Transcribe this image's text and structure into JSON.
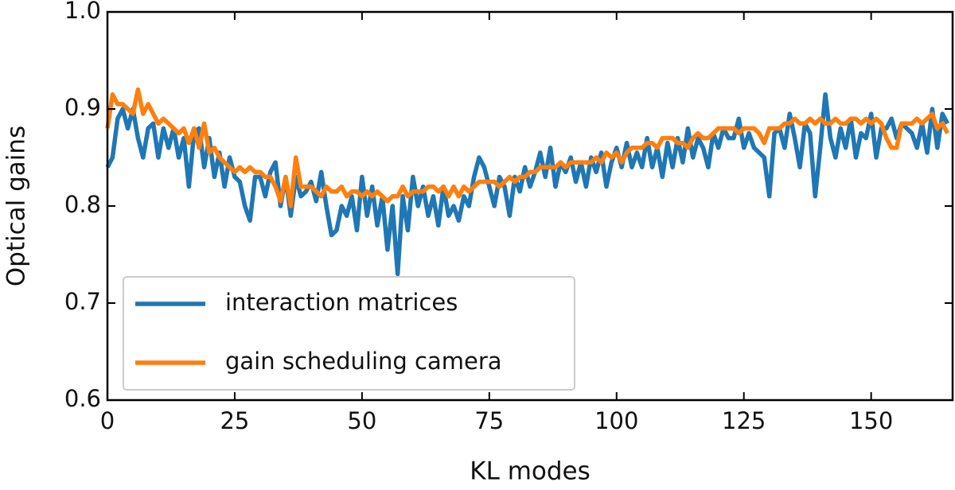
{
  "chart_data": {
    "type": "line",
    "xlabel": "KL modes",
    "ylabel": "Optical gains",
    "x": [
      0,
      1,
      2,
      3,
      4,
      5,
      6,
      7,
      8,
      9,
      10,
      11,
      12,
      13,
      14,
      15,
      16,
      17,
      18,
      19,
      20,
      21,
      22,
      23,
      24,
      25,
      26,
      27,
      28,
      29,
      30,
      31,
      32,
      33,
      34,
      35,
      36,
      37,
      38,
      39,
      40,
      41,
      42,
      43,
      44,
      45,
      46,
      47,
      48,
      49,
      50,
      51,
      52,
      53,
      54,
      55,
      56,
      57,
      58,
      59,
      60,
      61,
      62,
      63,
      64,
      65,
      66,
      67,
      68,
      69,
      70,
      71,
      72,
      73,
      74,
      75,
      76,
      77,
      78,
      79,
      80,
      81,
      82,
      83,
      84,
      85,
      86,
      87,
      88,
      89,
      90,
      91,
      92,
      93,
      94,
      95,
      96,
      97,
      98,
      99,
      100,
      101,
      102,
      103,
      104,
      105,
      106,
      107,
      108,
      109,
      110,
      111,
      112,
      113,
      114,
      115,
      116,
      117,
      118,
      119,
      120,
      121,
      122,
      123,
      124,
      125,
      126,
      127,
      128,
      129,
      130,
      131,
      132,
      133,
      134,
      135,
      136,
      137,
      138,
      139,
      140,
      141,
      142,
      143,
      144,
      145,
      146,
      147,
      148,
      149,
      150,
      151,
      152,
      153,
      154,
      155,
      156,
      157,
      158,
      159,
      160,
      161,
      162,
      163,
      164,
      165
    ],
    "series": [
      {
        "name": "interaction matrices",
        "color": "#1f77b4",
        "values": [
          0.84,
          0.85,
          0.89,
          0.9,
          0.88,
          0.9,
          0.87,
          0.85,
          0.88,
          0.885,
          0.85,
          0.88,
          0.86,
          0.88,
          0.85,
          0.87,
          0.82,
          0.875,
          0.88,
          0.84,
          0.87,
          0.83,
          0.855,
          0.82,
          0.85,
          0.83,
          0.825,
          0.8,
          0.785,
          0.83,
          0.83,
          0.81,
          0.835,
          0.845,
          0.8,
          0.83,
          0.79,
          0.83,
          0.81,
          0.815,
          0.825,
          0.805,
          0.835,
          0.8,
          0.77,
          0.775,
          0.8,
          0.79,
          0.81,
          0.775,
          0.83,
          0.79,
          0.82,
          0.78,
          0.81,
          0.755,
          0.8,
          0.73,
          0.81,
          0.775,
          0.83,
          0.8,
          0.82,
          0.79,
          0.81,
          0.78,
          0.82,
          0.79,
          0.8,
          0.785,
          0.81,
          0.8,
          0.83,
          0.85,
          0.84,
          0.82,
          0.8,
          0.83,
          0.82,
          0.79,
          0.83,
          0.815,
          0.84,
          0.82,
          0.835,
          0.855,
          0.83,
          0.86,
          0.82,
          0.845,
          0.835,
          0.85,
          0.825,
          0.845,
          0.82,
          0.85,
          0.835,
          0.855,
          0.82,
          0.845,
          0.86,
          0.84,
          0.865,
          0.84,
          0.855,
          0.84,
          0.87,
          0.84,
          0.86,
          0.83,
          0.865,
          0.84,
          0.87,
          0.845,
          0.88,
          0.85,
          0.87,
          0.86,
          0.84,
          0.875,
          0.86,
          0.88,
          0.87,
          0.87,
          0.89,
          0.86,
          0.875,
          0.86,
          0.855,
          0.85,
          0.81,
          0.875,
          0.88,
          0.86,
          0.895,
          0.87,
          0.84,
          0.885,
          0.875,
          0.81,
          0.86,
          0.915,
          0.87,
          0.85,
          0.88,
          0.86,
          0.89,
          0.85,
          0.875,
          0.87,
          0.895,
          0.85,
          0.88,
          0.88,
          0.89,
          0.87,
          0.885,
          0.88,
          0.875,
          0.86,
          0.885,
          0.855,
          0.9,
          0.86,
          0.895,
          0.885
        ]
      },
      {
        "name": "gain scheduling camera",
        "color": "#ff7f0e",
        "values": [
          0.88,
          0.915,
          0.905,
          0.905,
          0.9,
          0.895,
          0.92,
          0.895,
          0.905,
          0.895,
          0.885,
          0.89,
          0.885,
          0.88,
          0.875,
          0.88,
          0.865,
          0.88,
          0.86,
          0.885,
          0.855,
          0.86,
          0.85,
          0.845,
          0.84,
          0.835,
          0.84,
          0.835,
          0.84,
          0.835,
          0.835,
          0.83,
          0.83,
          0.82,
          0.805,
          0.83,
          0.8,
          0.85,
          0.82,
          0.82,
          0.82,
          0.815,
          0.81,
          0.82,
          0.815,
          0.815,
          0.82,
          0.81,
          0.815,
          0.815,
          0.81,
          0.815,
          0.81,
          0.815,
          0.81,
          0.805,
          0.81,
          0.81,
          0.82,
          0.81,
          0.815,
          0.815,
          0.815,
          0.82,
          0.82,
          0.815,
          0.82,
          0.81,
          0.82,
          0.81,
          0.82,
          0.815,
          0.82,
          0.825,
          0.825,
          0.825,
          0.825,
          0.82,
          0.825,
          0.83,
          0.825,
          0.83,
          0.83,
          0.835,
          0.835,
          0.84,
          0.84,
          0.84,
          0.84,
          0.845,
          0.84,
          0.845,
          0.845,
          0.845,
          0.845,
          0.845,
          0.85,
          0.845,
          0.855,
          0.85,
          0.855,
          0.845,
          0.855,
          0.86,
          0.86,
          0.86,
          0.865,
          0.865,
          0.86,
          0.87,
          0.87,
          0.87,
          0.865,
          0.865,
          0.86,
          0.87,
          0.875,
          0.87,
          0.87,
          0.875,
          0.88,
          0.88,
          0.88,
          0.88,
          0.875,
          0.88,
          0.88,
          0.88,
          0.875,
          0.865,
          0.88,
          0.88,
          0.88,
          0.885,
          0.885,
          0.89,
          0.885,
          0.885,
          0.89,
          0.885,
          0.89,
          0.885,
          0.885,
          0.89,
          0.885,
          0.885,
          0.89,
          0.89,
          0.885,
          0.89,
          0.885,
          0.89,
          0.885,
          0.87,
          0.86,
          0.86,
          0.885,
          0.885,
          0.885,
          0.89,
          0.885,
          0.89,
          0.895,
          0.88,
          0.885,
          0.875
        ]
      }
    ],
    "xlim": [
      0,
      166
    ],
    "xticks": [
      0,
      25,
      50,
      75,
      100,
      125,
      150
    ],
    "ylim": [
      0.6,
      1.0
    ],
    "yticks": [
      0.6,
      0.7,
      0.8,
      0.9,
      {
        "value": 1.0,
        "label": "1.0"
      }
    ],
    "legend": "lower left"
  }
}
